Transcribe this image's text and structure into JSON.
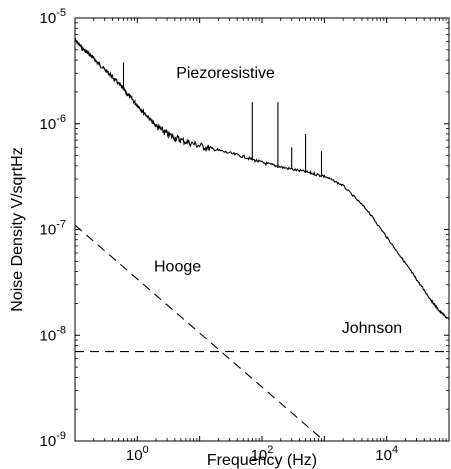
{
  "chart_data": {
    "type": "line",
    "title": "",
    "xlabel": "Frequency (Hz)",
    "ylabel": "Noise Density V/sqrtHz",
    "xscale": "log",
    "yscale": "log",
    "xlim": [
      0.1,
      100000
    ],
    "ylim": [
      1e-09,
      1e-05
    ],
    "grid": false,
    "legend": "none",
    "x_ticks": [
      {
        "value": 1,
        "base": "10",
        "exp": "0"
      },
      {
        "value": 100,
        "base": "10",
        "exp": "2"
      },
      {
        "value": 10000,
        "base": "10",
        "exp": "4"
      }
    ],
    "y_ticks": [
      {
        "value": 1e-09,
        "base": "10",
        "exp": "-9"
      },
      {
        "value": 1e-08,
        "base": "10",
        "exp": "-8"
      },
      {
        "value": 1e-07,
        "base": "10",
        "exp": "-7"
      },
      {
        "value": 1e-06,
        "base": "10",
        "exp": "-6"
      },
      {
        "value": 1e-05,
        "base": "10",
        "exp": "-5"
      }
    ],
    "series": [
      {
        "name": "Piezoresistive",
        "style": "solid",
        "points": [
          [
            0.1,
            6.2e-06
          ],
          [
            0.13,
            5.2e-06
          ],
          [
            0.18,
            4.4e-06
          ],
          [
            0.25,
            3.6e-06
          ],
          [
            0.35,
            3e-06
          ],
          [
            0.5,
            2.4e-06
          ],
          [
            0.7,
            1.9e-06
          ],
          [
            1.0,
            1.5e-06
          ],
          [
            1.5,
            1.15e-06
          ],
          [
            2,
            9.5e-07
          ],
          [
            3,
            8e-07
          ],
          [
            5,
            7e-07
          ],
          [
            10,
            6.2e-07
          ],
          [
            20,
            5.6e-07
          ],
          [
            50,
            4.9e-07
          ],
          [
            100,
            4.3e-07
          ],
          [
            200,
            3.9e-07
          ],
          [
            500,
            3.5e-07
          ],
          [
            1000,
            3.2e-07
          ],
          [
            2000,
            2.6e-07
          ],
          [
            5000,
            1.5e-07
          ],
          [
            10000,
            8.5e-08
          ],
          [
            20000,
            4.8e-08
          ],
          [
            30000,
            3.4e-08
          ],
          [
            50000,
            2.2e-08
          ],
          [
            70000,
            1.7e-08
          ],
          [
            100000,
            1.4e-08
          ]
        ],
        "spikes": [
          {
            "x": 0.6,
            "y": 3.8e-06
          },
          {
            "x": 70,
            "y": 1.6e-06
          },
          {
            "x": 180,
            "y": 1.6e-06
          },
          {
            "x": 300,
            "y": 6e-07
          },
          {
            "x": 500,
            "y": 8e-07
          },
          {
            "x": 900,
            "y": 5.5e-07
          }
        ]
      },
      {
        "name": "Hooge",
        "style": "dashed",
        "points": [
          [
            0.1,
            1.1e-07
          ],
          [
            1000,
            1e-09
          ]
        ]
      },
      {
        "name": "Johnson",
        "style": "dashed",
        "points": [
          [
            0.1,
            7e-09
          ],
          [
            100000,
            7e-09
          ]
        ]
      }
    ],
    "annotations": [
      {
        "text": "Piezoresistive",
        "x": 4.2,
        "y": 2.7e-06
      },
      {
        "text": "Hooge",
        "x": 1.85,
        "y": 4e-08
      },
      {
        "text": "Johnson",
        "x": 1900,
        "y": 1.05e-08
      }
    ]
  }
}
